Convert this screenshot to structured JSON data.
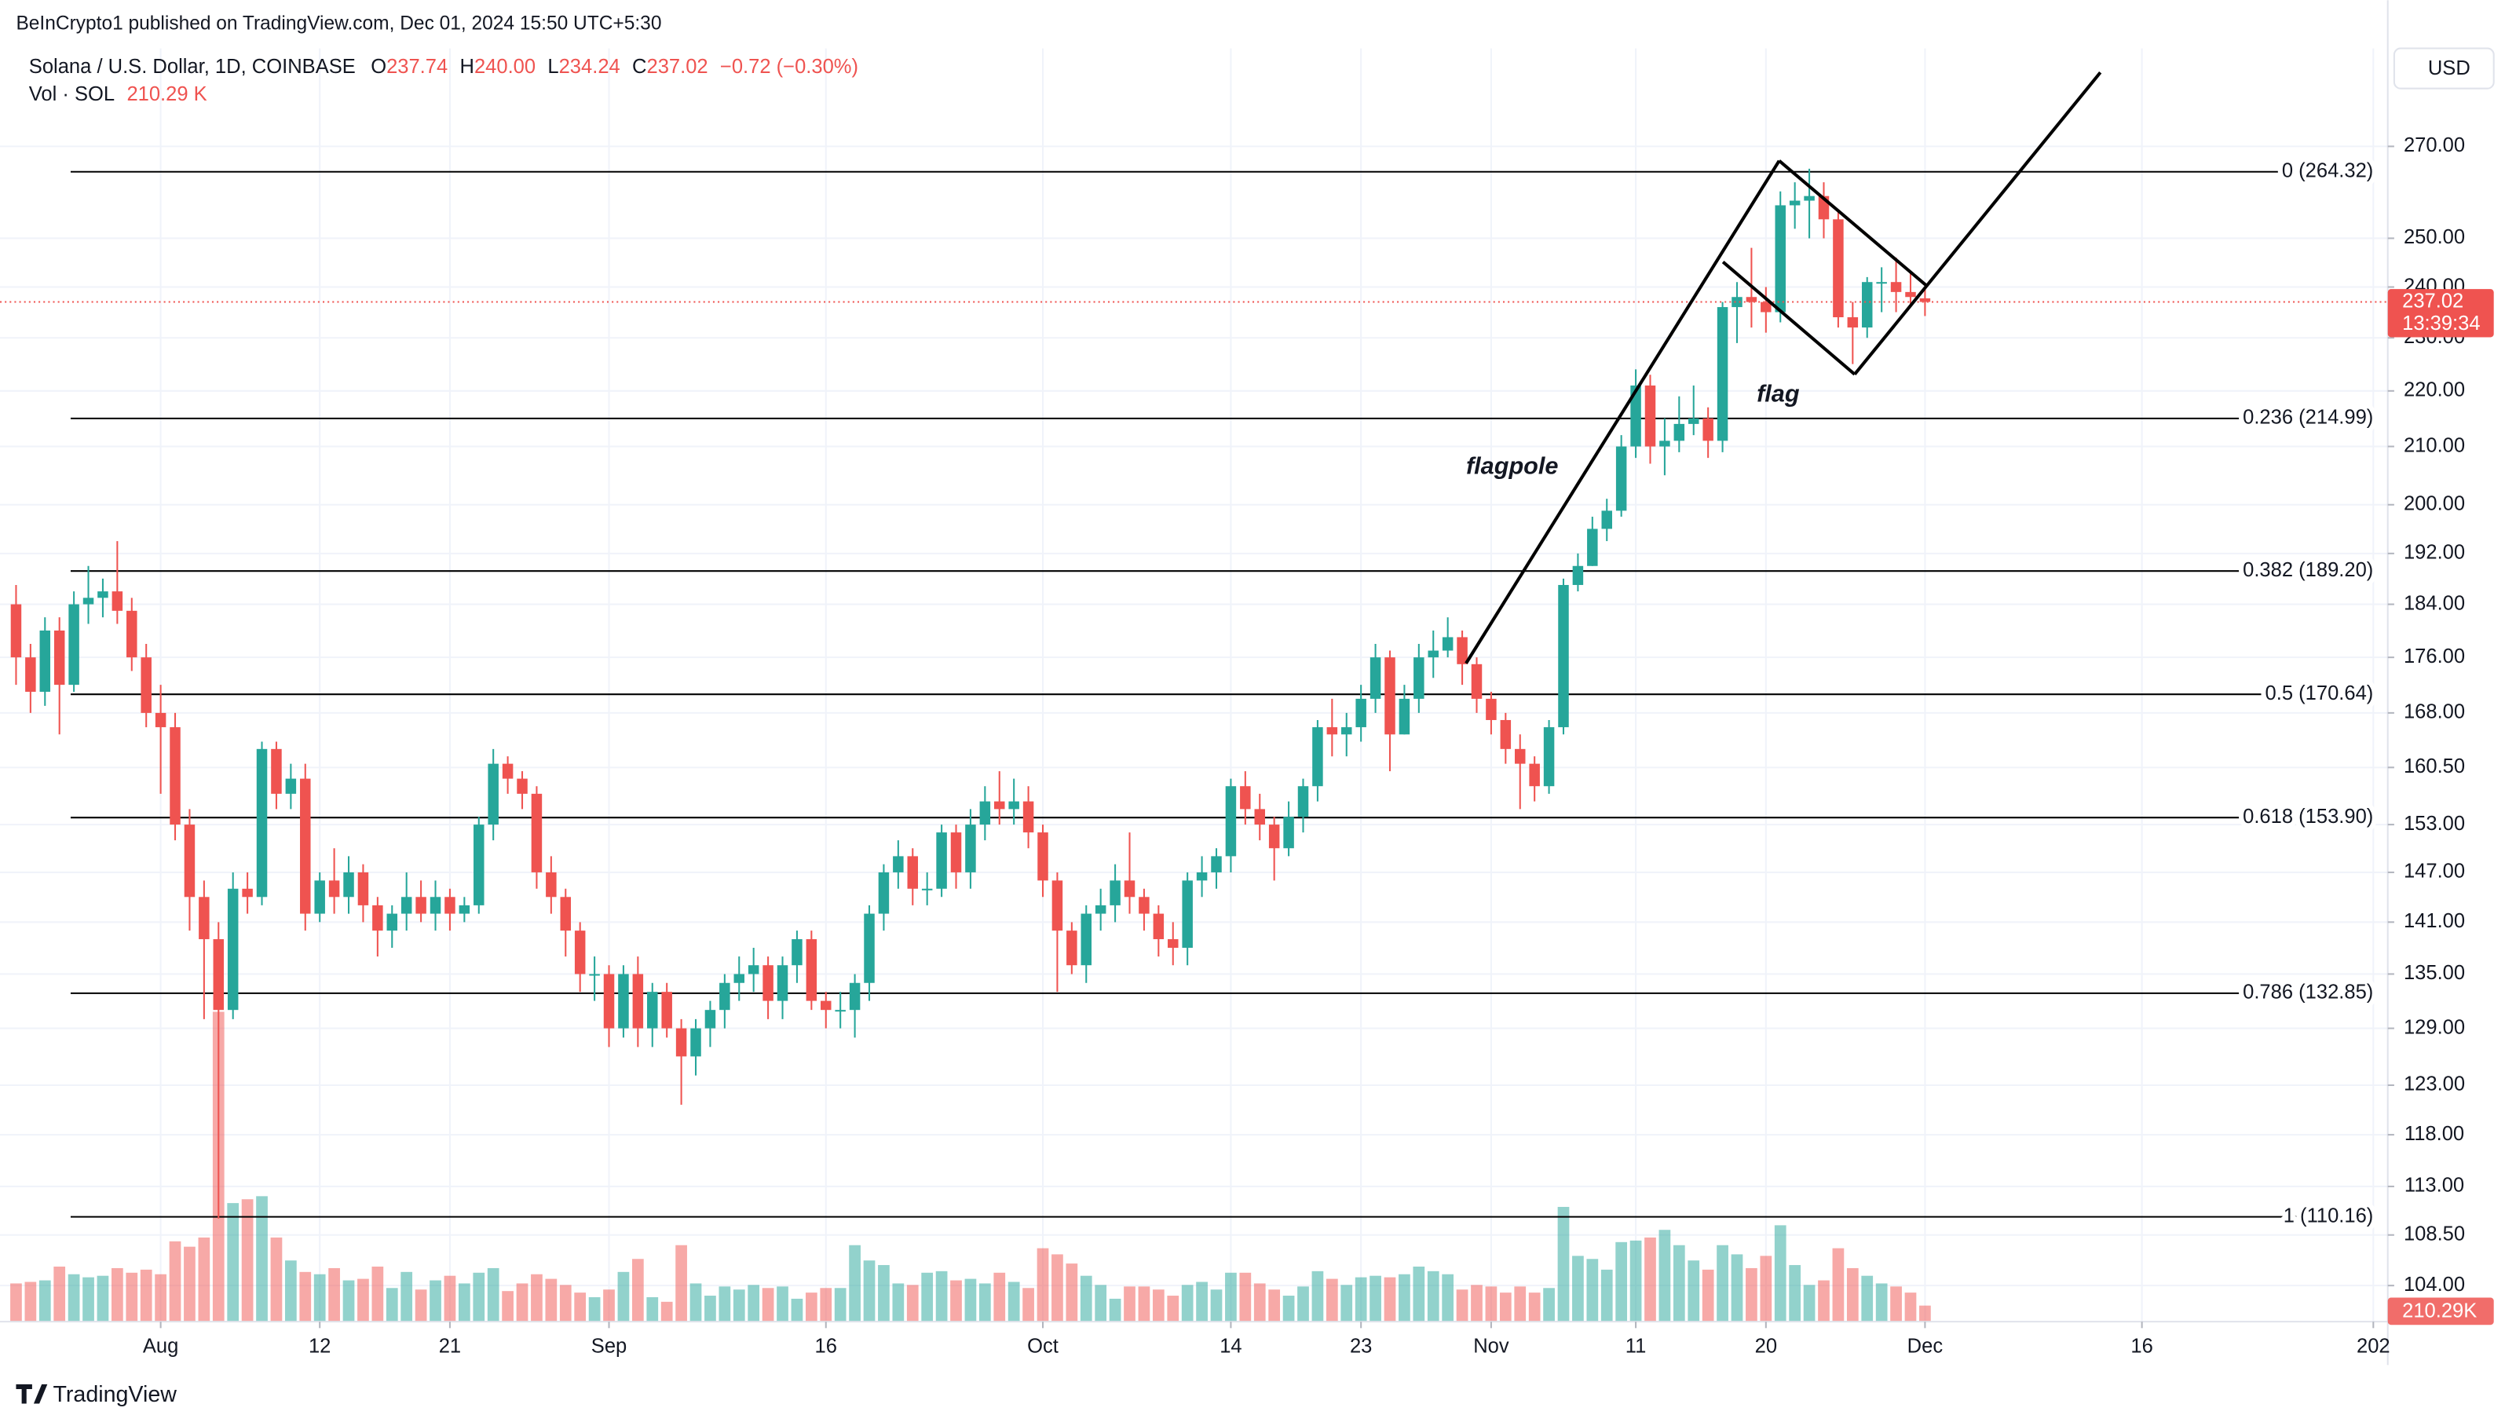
{
  "header": {
    "publisher": "BeInCrypto1 published on TradingView.com, Dec 01, 2024 15:50 UTC+5:30",
    "symbol": "Solana / U.S. Dollar, 1D, COINBASE",
    "legend": [
      {
        "key": "O",
        "value": "237.74"
      },
      {
        "key": "H",
        "value": "240.00"
      },
      {
        "key": "L",
        "value": "234.24"
      },
      {
        "key": "C",
        "value": "237.02"
      }
    ],
    "change": "−0.72 (−0.30%)",
    "vol_title": "Vol · SOL",
    "vol_value": "210.29 K",
    "currency": "USD"
  },
  "chart_data": {
    "type": "candlestick",
    "log_scale": true,
    "grid": true,
    "up_color": "#26a69a",
    "down_color": "#ef5350",
    "x": [
      "2024-07-22",
      "2024-07-23",
      "2024-07-24",
      "2024-07-25",
      "2024-07-26",
      "2024-07-27",
      "2024-07-28",
      "2024-07-29",
      "2024-07-30",
      "2024-07-31",
      "2024-08-01",
      "2024-08-02",
      "2024-08-03",
      "2024-08-04",
      "2024-08-05",
      "2024-08-06",
      "2024-08-07",
      "2024-08-08",
      "2024-08-09",
      "2024-08-10",
      "2024-08-11",
      "2024-08-12",
      "2024-08-13",
      "2024-08-14",
      "2024-08-15",
      "2024-08-16",
      "2024-08-17",
      "2024-08-18",
      "2024-08-19",
      "2024-08-20",
      "2024-08-21",
      "2024-08-22",
      "2024-08-23",
      "2024-08-24",
      "2024-08-25",
      "2024-08-26",
      "2024-08-27",
      "2024-08-28",
      "2024-08-29",
      "2024-08-30",
      "2024-08-31",
      "2024-09-01",
      "2024-09-02",
      "2024-09-03",
      "2024-09-04",
      "2024-09-05",
      "2024-09-06",
      "2024-09-07",
      "2024-09-08",
      "2024-09-09",
      "2024-09-10",
      "2024-09-11",
      "2024-09-12",
      "2024-09-13",
      "2024-09-14",
      "2024-09-15",
      "2024-09-16",
      "2024-09-17",
      "2024-09-18",
      "2024-09-19",
      "2024-09-20",
      "2024-09-21",
      "2024-09-22",
      "2024-09-23",
      "2024-09-24",
      "2024-09-25",
      "2024-09-26",
      "2024-09-27",
      "2024-09-28",
      "2024-09-29",
      "2024-09-30",
      "2024-10-01",
      "2024-10-02",
      "2024-10-03",
      "2024-10-04",
      "2024-10-05",
      "2024-10-06",
      "2024-10-07",
      "2024-10-08",
      "2024-10-09",
      "2024-10-10",
      "2024-10-11",
      "2024-10-12",
      "2024-10-13",
      "2024-10-14",
      "2024-10-15",
      "2024-10-16",
      "2024-10-17",
      "2024-10-18",
      "2024-10-19",
      "2024-10-20",
      "2024-10-21",
      "2024-10-22",
      "2024-10-23",
      "2024-10-24",
      "2024-10-25",
      "2024-10-26",
      "2024-10-27",
      "2024-10-28",
      "2024-10-29",
      "2024-10-30",
      "2024-10-31",
      "2024-11-01",
      "2024-11-02",
      "2024-11-03",
      "2024-11-04",
      "2024-11-05",
      "2024-11-06",
      "2024-11-07",
      "2024-11-08",
      "2024-11-09",
      "2024-11-10",
      "2024-11-11",
      "2024-11-12",
      "2024-11-13",
      "2024-11-14",
      "2024-11-15",
      "2024-11-16",
      "2024-11-17",
      "2024-11-18",
      "2024-11-19",
      "2024-11-20",
      "2024-11-21",
      "2024-11-22",
      "2024-11-23",
      "2024-11-24",
      "2024-11-25",
      "2024-11-26",
      "2024-11-27",
      "2024-11-28",
      "2024-11-29",
      "2024-11-30",
      "2024-12-01"
    ],
    "open": [
      184,
      176,
      171,
      180,
      172,
      184,
      185,
      186,
      183,
      176,
      168,
      166,
      153,
      144,
      139,
      131,
      145,
      144,
      163,
      157,
      159,
      142,
      146,
      144,
      147,
      143,
      140,
      142,
      144,
      142,
      144,
      142,
      143,
      153,
      161,
      159,
      157,
      147,
      144,
      140,
      135,
      135,
      129,
      135,
      129,
      133,
      129,
      126,
      129,
      131,
      134,
      135,
      136,
      132,
      136,
      139,
      132,
      131,
      131,
      134,
      142,
      147,
      149,
      145,
      145,
      152,
      147,
      153,
      156,
      155,
      156,
      152,
      146,
      140,
      136,
      142,
      143,
      146,
      144,
      142,
      139,
      138,
      146,
      147,
      149,
      158,
      155,
      153,
      150,
      154,
      158,
      166,
      165,
      166,
      170,
      176,
      165,
      170,
      176,
      177,
      179,
      175,
      170,
      167,
      163,
      161,
      158,
      166,
      187,
      190,
      196,
      199,
      210,
      221,
      210,
      211,
      214,
      215,
      211,
      236,
      238,
      237,
      235,
      257,
      258,
      259,
      254,
      234,
      232,
      241,
      241,
      239,
      237.74
    ],
    "high": [
      187,
      178,
      182,
      182,
      186,
      190,
      188,
      194,
      185,
      178,
      172,
      168,
      155,
      146,
      141,
      147,
      147,
      164,
      164,
      161,
      161,
      147,
      150,
      149,
      148,
      144,
      143,
      147,
      146,
      146,
      145,
      144,
      154,
      163,
      162,
      160,
      158,
      149,
      145,
      141,
      137,
      136,
      136,
      137,
      134,
      134,
      130,
      130,
      132,
      135,
      137,
      138,
      137,
      137,
      140,
      140,
      133,
      133,
      135,
      143,
      148,
      151,
      150,
      147,
      153,
      153,
      155,
      158,
      160,
      159,
      158,
      153,
      147,
      141,
      143,
      145,
      148,
      152,
      145,
      143,
      141,
      147,
      149,
      150,
      159,
      160,
      157,
      154,
      156,
      159,
      167,
      170,
      168,
      172,
      178,
      177,
      172,
      178,
      180,
      182,
      180,
      176,
      171,
      168,
      165,
      162,
      167,
      188,
      192,
      198,
      201,
      212,
      224,
      223,
      215,
      219,
      221,
      217,
      237,
      241,
      248,
      240,
      260,
      262,
      265,
      262,
      256,
      237,
      242,
      244,
      246,
      243,
      240
    ],
    "low": [
      172,
      168,
      169,
      165,
      171,
      181,
      182,
      181,
      174,
      166,
      157,
      151,
      140,
      130,
      110,
      130,
      142,
      143,
      155,
      155,
      140,
      141,
      142,
      142,
      141,
      137,
      138,
      140,
      141,
      140,
      140,
      141,
      142,
      151,
      157,
      155,
      145,
      142,
      137,
      133,
      132,
      127,
      128,
      127,
      127,
      128,
      121,
      124,
      127,
      129,
      132,
      133,
      130,
      130,
      134,
      131,
      129,
      129,
      128,
      132,
      140,
      145,
      143,
      143,
      144,
      145,
      145,
      151,
      153,
      153,
      150,
      144,
      133,
      135,
      134,
      140,
      141,
      142,
      140,
      137,
      136,
      136,
      144,
      145,
      147,
      153,
      151,
      146,
      149,
      152,
      156,
      162,
      162,
      164,
      168,
      160,
      165,
      168,
      173,
      176,
      172,
      168,
      165,
      161,
      155,
      156,
      157,
      165,
      186,
      190,
      194,
      198,
      208,
      207,
      205,
      209,
      212,
      208,
      209,
      229,
      232,
      231,
      233,
      252,
      250,
      250,
      232,
      225,
      230,
      235,
      235,
      236,
      234.24
    ],
    "close": [
      176,
      171,
      180,
      172,
      184,
      185,
      186,
      183,
      176,
      168,
      166,
      153,
      144,
      139,
      131,
      145,
      144,
      163,
      157,
      159,
      142,
      146,
      144,
      147,
      143,
      140,
      142,
      144,
      142,
      144,
      142,
      143,
      153,
      161,
      159,
      157,
      147,
      144,
      140,
      135,
      135,
      129,
      135,
      129,
      133,
      129,
      126,
      129,
      131,
      134,
      135,
      136,
      132,
      136,
      139,
      132,
      131,
      131,
      134,
      142,
      147,
      149,
      145,
      145,
      152,
      147,
      153,
      156,
      155,
      156,
      152,
      146,
      140,
      136,
      142,
      143,
      146,
      144,
      142,
      139,
      138,
      146,
      147,
      149,
      158,
      155,
      153,
      150,
      154,
      158,
      166,
      165,
      166,
      170,
      176,
      165,
      170,
      176,
      177,
      179,
      175,
      170,
      167,
      163,
      161,
      158,
      166,
      187,
      190,
      196,
      199,
      210,
      221,
      210,
      211,
      214,
      215,
      211,
      236,
      238,
      237,
      235,
      257,
      258,
      259,
      254,
      234,
      232,
      241,
      241,
      239,
      238,
      237.02
    ],
    "volume": [
      500,
      520,
      540,
      720,
      620,
      580,
      600,
      700,
      640,
      680,
      620,
      1050,
      980,
      1100,
      4050,
      1550,
      1600,
      1640,
      1100,
      800,
      650,
      620,
      700,
      540,
      560,
      720,
      440,
      650,
      420,
      540,
      600,
      500,
      640,
      700,
      400,
      500,
      620,
      560,
      480,
      380,
      320,
      420,
      650,
      820,
      320,
      260,
      1000,
      500,
      340,
      460,
      420,
      480,
      440,
      460,
      300,
      380,
      440,
      440,
      1000,
      800,
      740,
      500,
      480,
      640,
      660,
      540,
      560,
      500,
      640,
      520,
      440,
      960,
      880,
      760,
      600,
      480,
      300,
      460,
      460,
      420,
      340,
      480,
      520,
      420,
      640,
      640,
      500,
      420,
      340,
      460,
      660,
      560,
      480,
      580,
      600,
      580,
      620,
      720,
      660,
      620,
      420,
      480,
      460,
      380,
      460,
      380,
      440,
      1500,
      860,
      820,
      680,
      1040,
      1060,
      1100,
      1200,
      1000,
      800,
      680,
      1000,
      880,
      700,
      860,
      1260,
      740,
      480,
      540,
      960,
      700,
      600,
      500,
      460,
      380,
      210.29
    ],
    "last_volume_label": "210.29K",
    "countdown": "13:39:34",
    "xlim": [
      "2024-07-22",
      "2025-01-02"
    ],
    "xticks": [
      {
        "value": "2024-08-01",
        "label": "Aug"
      },
      {
        "value": "2024-08-12",
        "label": "12"
      },
      {
        "value": "2024-08-21",
        "label": "21"
      },
      {
        "value": "2024-09-01",
        "label": "Sep"
      },
      {
        "value": "2024-09-16",
        "label": "16"
      },
      {
        "value": "2024-10-01",
        "label": "Oct"
      },
      {
        "value": "2024-10-14",
        "label": "14"
      },
      {
        "value": "2024-10-23",
        "label": "23"
      },
      {
        "value": "2024-11-01",
        "label": "Nov"
      },
      {
        "value": "2024-11-11",
        "label": "11"
      },
      {
        "value": "2024-11-20",
        "label": "20"
      },
      {
        "value": "2024-12-01",
        "label": "Dec"
      },
      {
        "value": "2024-12-16",
        "label": "16"
      },
      {
        "value": "2025-01-01",
        "label": "202"
      }
    ],
    "ylim": [
      100.9,
      293.1
    ],
    "yticks": [
      {
        "value": 270,
        "label": "270.00"
      },
      {
        "value": 250,
        "label": "250.00"
      },
      {
        "value": 240,
        "label": "240.00"
      },
      {
        "value": 230,
        "label": "230.00"
      },
      {
        "value": 220,
        "label": "220.00"
      },
      {
        "value": 210,
        "label": "210.00"
      },
      {
        "value": 200,
        "label": "200.00"
      },
      {
        "value": 192,
        "label": "192.00"
      },
      {
        "value": 184,
        "label": "184.00"
      },
      {
        "value": 176,
        "label": "176.00"
      },
      {
        "value": 168,
        "label": "168.00"
      },
      {
        "value": 160.5,
        "label": "160.50"
      },
      {
        "value": 153,
        "label": "153.00"
      },
      {
        "value": 147,
        "label": "147.00"
      },
      {
        "value": 141,
        "label": "141.00"
      },
      {
        "value": 135,
        "label": "135.00"
      },
      {
        "value": 129,
        "label": "129.00"
      },
      {
        "value": 123,
        "label": "123.00"
      },
      {
        "value": 118,
        "label": "118.00"
      },
      {
        "value": 113,
        "label": "113.00"
      },
      {
        "value": 108.5,
        "label": "108.50"
      },
      {
        "value": 104,
        "label": "104.00"
      }
    ],
    "fib_levels": [
      {
        "value": 264.32,
        "label": "0 (264.32)"
      },
      {
        "value": 214.99,
        "label": "0.236 (214.99)"
      },
      {
        "value": 189.2,
        "label": "0.382 (189.20)"
      },
      {
        "value": 170.64,
        "label": "0.5 (170.64)"
      },
      {
        "value": 153.9,
        "label": "0.618 (153.90)"
      },
      {
        "value": 132.85,
        "label": "0.786 (132.85)"
      },
      {
        "value": 110.16,
        "label": "1 (110.16)"
      }
    ],
    "annotations": [
      "flagpole",
      "flag"
    ]
  },
  "footer": {
    "logo": "TradingView"
  }
}
